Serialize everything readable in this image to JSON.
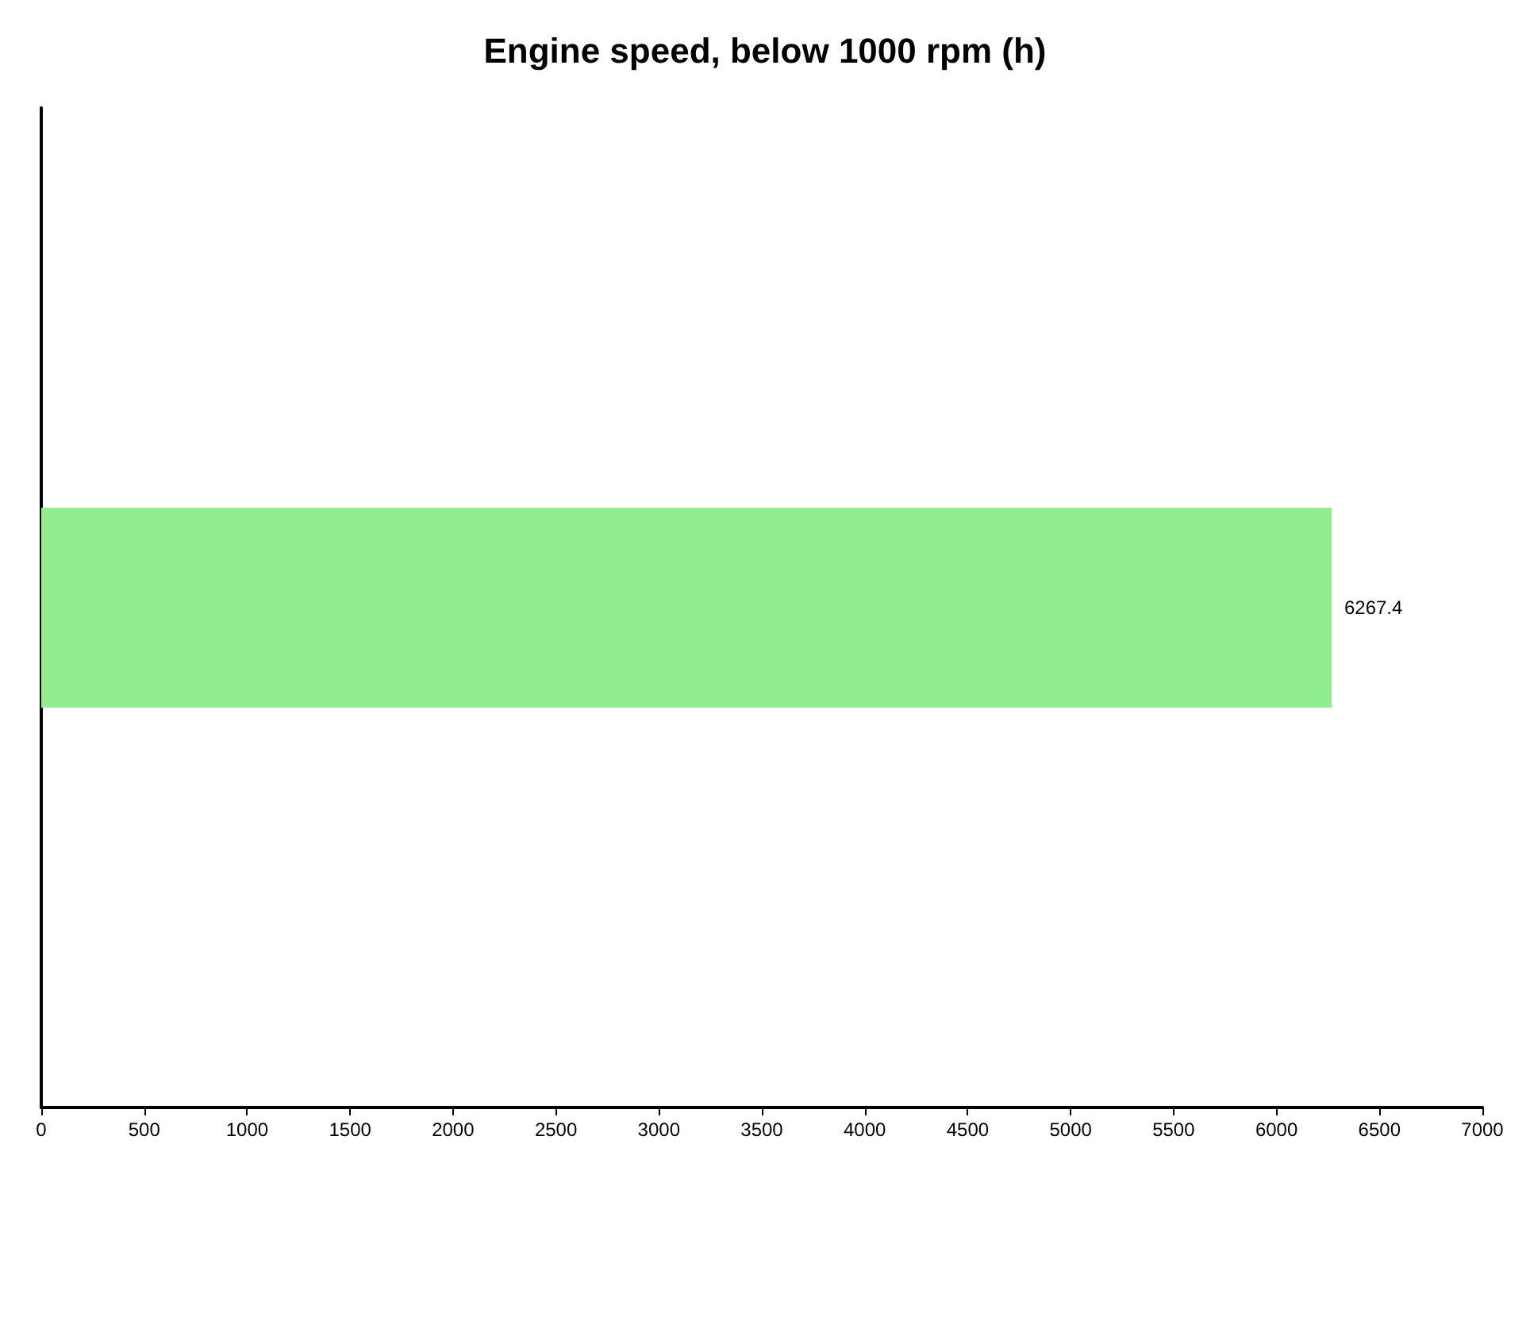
{
  "chart_data": {
    "type": "bar",
    "title": "Engine speed, below 1000 rpm (h)",
    "orientation": "horizontal",
    "categories": [
      null
    ],
    "series": [
      {
        "color": "#90ee90",
        "values": [
          6267.4
        ]
      }
    ],
    "xlim": [
      0,
      7000
    ],
    "xticks": [
      0,
      500,
      1000,
      1500,
      2000,
      2500,
      3000,
      3500,
      4000,
      4500,
      5000,
      5500,
      6000,
      6500,
      7000
    ],
    "data_labels": true
  }
}
